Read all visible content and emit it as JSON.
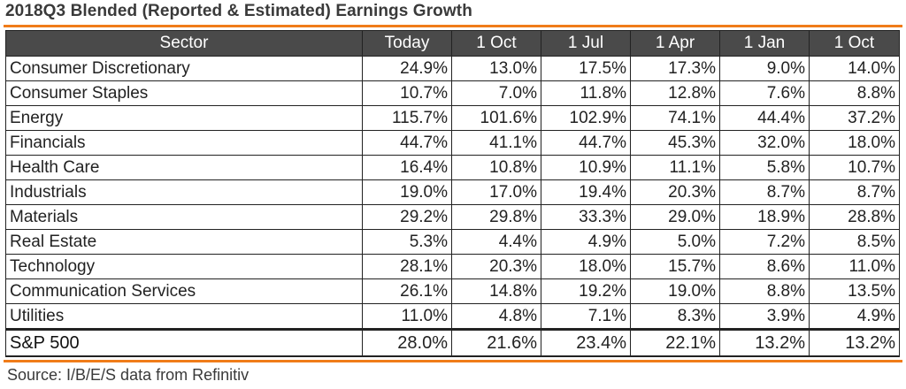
{
  "title": "2018Q3 Blended (Reported & Estimated) Earnings Growth",
  "source": "Source: I/B/E/S data from Refinitiv",
  "colors": {
    "accent_rule": "#f07c19",
    "header_bg": "#4a4a4a",
    "header_text": "#ffffff"
  },
  "chart_data": {
    "type": "table",
    "title": "2018Q3 Blended (Reported & Estimated) Earnings Growth",
    "columns": [
      "Sector",
      "Today",
      "1 Oct",
      "1 Jul",
      "1 Apr",
      "1 Jan",
      "1 Oct"
    ],
    "rows": [
      {
        "sector": "Consumer Discretionary",
        "values": [
          "24.9%",
          "13.0%",
          "17.5%",
          "17.3%",
          "9.0%",
          "14.0%"
        ]
      },
      {
        "sector": "Consumer Staples",
        "values": [
          "10.7%",
          "7.0%",
          "11.8%",
          "12.8%",
          "7.6%",
          "8.8%"
        ]
      },
      {
        "sector": "Energy",
        "values": [
          "115.7%",
          "101.6%",
          "102.9%",
          "74.1%",
          "44.4%",
          "37.2%"
        ]
      },
      {
        "sector": "Financials",
        "values": [
          "44.7%",
          "41.1%",
          "44.7%",
          "45.3%",
          "32.0%",
          "18.0%"
        ]
      },
      {
        "sector": "Health Care",
        "values": [
          "16.4%",
          "10.8%",
          "10.9%",
          "11.1%",
          "5.8%",
          "10.7%"
        ]
      },
      {
        "sector": "Industrials",
        "values": [
          "19.0%",
          "17.0%",
          "19.4%",
          "20.3%",
          "8.7%",
          "8.7%"
        ]
      },
      {
        "sector": "Materials",
        "values": [
          "29.2%",
          "29.8%",
          "33.3%",
          "29.0%",
          "18.9%",
          "28.8%"
        ]
      },
      {
        "sector": "Real Estate",
        "values": [
          "5.3%",
          "4.4%",
          "4.9%",
          "5.0%",
          "7.2%",
          "8.5%"
        ]
      },
      {
        "sector": "Technology",
        "values": [
          "28.1%",
          "20.3%",
          "18.0%",
          "15.7%",
          "8.6%",
          "11.0%"
        ]
      },
      {
        "sector": "Communication Services",
        "values": [
          "26.1%",
          "14.8%",
          "19.2%",
          "19.0%",
          "8.8%",
          "13.5%"
        ]
      },
      {
        "sector": "Utilities",
        "values": [
          "11.0%",
          "4.8%",
          "7.1%",
          "8.3%",
          "3.9%",
          "4.9%"
        ]
      }
    ],
    "total": {
      "sector": "S&P 500",
      "values": [
        "28.0%",
        "21.6%",
        "23.4%",
        "22.1%",
        "13.2%",
        "13.2%"
      ]
    }
  }
}
